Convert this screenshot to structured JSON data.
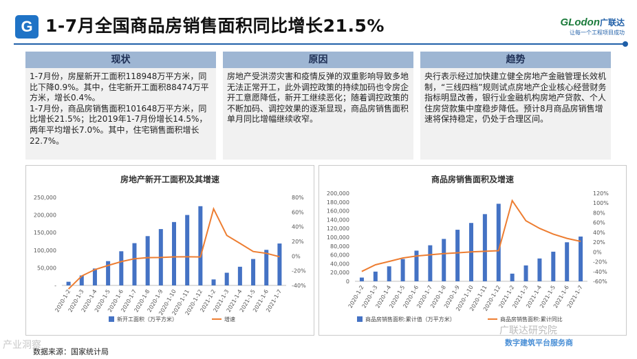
{
  "header": {
    "logo_letter": "G",
    "title": "1-7月全国商品房销售面积同比增长21.5%",
    "brand_name": "GLodon",
    "brand_cn": "广联达",
    "brand_slogan": "让每一个工程项目成功"
  },
  "panels": [
    {
      "title": "现状",
      "text": "1-7月份，房屋新开工面积118948万平方米，同比下降0.9%。其中，住宅新开工面积88474万平方米，增长0.4%。\n1-7月份，商品房销售面积101648万平方米，同比增长21.5%；比2019年1-7月份增长14.5%，两年平均增长7.0%。其中，住宅销售面积增长22.7%。"
    },
    {
      "title": "原因",
      "text": "房地产受洪涝灾害和疫情反弹的双重影响导致多地无法正常开工，此外调控政策的持续加码也令房企开工意愿降低，新开工继续恶化；随着调控政策的不断加码、调控效果的逐渐显现，商品房销售面积单月同比增幅继续收窄。"
    },
    {
      "title": "趋势",
      "text": "央行表示经过加快建立健全房地产金融管理长效机制，“三线四档”规则试点房地产企业核心经营财务指标明显改善，银行业金融机构房地产贷款、个人住房贷款集中度稳步降低。预计8月商品房销售增速将保持稳定，仍处于合理区间。"
    }
  ],
  "colors": {
    "bar": "#4472c4",
    "line": "#ed7d31",
    "accent": "#1f5fa8"
  },
  "chart_data": [
    {
      "type": "bar",
      "title": "房地产新开工面积及其增速",
      "categories": [
        "2020-1-2",
        "2020-1-3",
        "2020-1-4",
        "2020-1-5",
        "2020-1-6",
        "2020-1-7",
        "2020-1-8",
        "2020-1-9",
        "2020-1-10",
        "2020-1-11",
        "2020-1-12",
        "2021-1-2",
        "2021-1-3",
        "2021-1-4",
        "2021-1-5",
        "2021-1-6",
        "2021-1-7"
      ],
      "series": [
        {
          "name": "新开工面积（万平方米）",
          "kind": "bar",
          "axis": "left",
          "values": [
            10400,
            28200,
            48000,
            69000,
            97000,
            120000,
            140000,
            160000,
            180000,
            200000,
            225000,
            17000,
            36000,
            53000,
            75000,
            101000,
            119000
          ]
        },
        {
          "name": "增速",
          "kind": "line",
          "axis": "right",
          "values": [
            -44.9,
            -27.2,
            -18.4,
            -12.8,
            -7.6,
            -3.6,
            -2.1,
            -1.9,
            -1.1,
            -1.0,
            -1.2,
            64.3,
            28.2,
            17.3,
            6.2,
            3.8,
            -0.9
          ]
        }
      ],
      "ylim": [
        0,
        250000
      ],
      "yticks": [
        "-",
        "50,000",
        "100,000",
        "150,000",
        "200,000",
        "250,000"
      ],
      "y2lim": [
        -40,
        80
      ],
      "y2ticks": [
        "-40%",
        "-20%",
        "0%",
        "20%",
        "40%",
        "60%",
        "80%"
      ],
      "legend": [
        "新开工面积（万平方米）",
        "增速"
      ]
    },
    {
      "type": "bar",
      "title": "商品房销售面积及增速",
      "categories": [
        "2020-1-2",
        "2020-1-3",
        "2020-1-4",
        "2020-1-5",
        "2020-1-6",
        "2020-1-7",
        "2020-1-8",
        "2020-1-9",
        "2020-1-10",
        "2020-1-11",
        "2020-1-12",
        "2021-1-2",
        "2021-1-3",
        "2021-1-4",
        "2021-1-5",
        "2021-1-6",
        "2021-1-7"
      ],
      "series": [
        {
          "name": "商品房销售面积:累计值（万平方米）",
          "kind": "bar",
          "axis": "left",
          "values": [
            8475,
            21978,
            33973,
            50588,
            69604,
            81795,
            96235,
            117073,
            132493,
            152595,
            176086,
            17363,
            36007,
            51809,
            67246,
            88635,
            101648
          ]
        },
        {
          "name": "商品房销售面积:累计同比",
          "kind": "line",
          "axis": "right",
          "values": [
            -39.9,
            -26.3,
            -19.3,
            -12.3,
            -8.4,
            -5.8,
            -3.3,
            -1.8,
            0,
            1.3,
            2.6,
            104.9,
            63.8,
            48.1,
            36.4,
            27.7,
            21.5
          ]
        }
      ],
      "ylim": [
        0,
        200000
      ],
      "yticks": [
        "0",
        "20,000",
        "40,000",
        "60,000",
        "80,000",
        "100,000",
        "120,000",
        "140,000",
        "160,000",
        "180,000",
        "200,000"
      ],
      "y2lim": [
        -60,
        120
      ],
      "y2ticks": [
        "-60%",
        "-40%",
        "-20%",
        "0%",
        "20%",
        "40%",
        "60%",
        "80%",
        "100%",
        "120%"
      ],
      "legend": [
        "商品房销售面积:累计值（万平方米）",
        "商品房销售面积:累计同比"
      ]
    }
  ],
  "footer": {
    "source": "数据来源：国家统计局",
    "watermark_left": "产业洞察",
    "watermark_right": "广联达研究院",
    "watermark_sub": "数字建筑平台服务商"
  }
}
